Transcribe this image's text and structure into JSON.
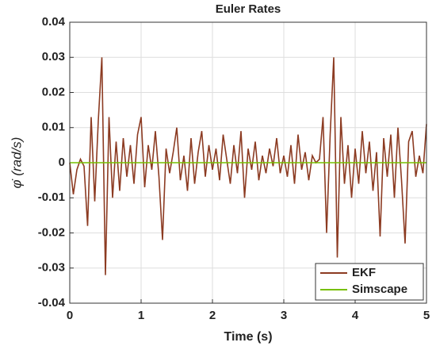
{
  "chart_data": {
    "type": "line",
    "title": "Euler Rates",
    "xlabel": "Time (s)",
    "ylabel": "φ̇ (rad/s)",
    "x": [
      0,
      0.05,
      0.1,
      0.15,
      0.2,
      0.25,
      0.3,
      0.35,
      0.4,
      0.45,
      0.5,
      0.55,
      0.6,
      0.65,
      0.7,
      0.75,
      0.8,
      0.85,
      0.9,
      0.95,
      1,
      1.05,
      1.1,
      1.15,
      1.2,
      1.25,
      1.3,
      1.35,
      1.4,
      1.45,
      1.5,
      1.55,
      1.6,
      1.65,
      1.7,
      1.75,
      1.8,
      1.85,
      1.9,
      1.95,
      2,
      2.05,
      2.1,
      2.15,
      2.2,
      2.25,
      2.3,
      2.35,
      2.4,
      2.45,
      2.5,
      2.55,
      2.6,
      2.65,
      2.7,
      2.75,
      2.8,
      2.85,
      2.9,
      2.95,
      3,
      3.05,
      3.1,
      3.15,
      3.2,
      3.25,
      3.3,
      3.35,
      3.4,
      3.45,
      3.5,
      3.55,
      3.6,
      3.65,
      3.7,
      3.75,
      3.8,
      3.85,
      3.9,
      3.95,
      4,
      4.05,
      4.1,
      4.15,
      4.2,
      4.25,
      4.3,
      4.35,
      4.4,
      4.45,
      4.5,
      4.55,
      4.6,
      4.65,
      4.7,
      4.75,
      4.8,
      4.85,
      4.9,
      4.95,
      5
    ],
    "series": [
      {
        "name": "EKF",
        "color": "#8c3b22",
        "values": [
          0,
          -0.009,
          -0.002,
          0.001,
          -0.001,
          -0.018,
          0.013,
          -0.011,
          0.012,
          0.03,
          -0.032,
          0.013,
          -0.01,
          0.006,
          -0.008,
          0.007,
          -0.004,
          0.005,
          -0.006,
          0.008,
          0.013,
          -0.007,
          0.005,
          -0.002,
          0.009,
          -0.004,
          -0.022,
          0.004,
          -0.003,
          0.003,
          0.01,
          -0.005,
          0.002,
          -0.008,
          0.007,
          -0.006,
          0.003,
          0.009,
          -0.004,
          0.005,
          -0.002,
          0.004,
          -0.005,
          0.008,
          0.001,
          -0.006,
          0.005,
          -0.003,
          0.009,
          -0.01,
          0.004,
          -0.002,
          0.006,
          -0.005,
          0.002,
          -0.003,
          0.004,
          -0.001,
          0.007,
          -0.003,
          0.002,
          -0.004,
          0.005,
          -0.006,
          0.008,
          -0.002,
          0.003,
          -0.005,
          0.002,
          0,
          0.001,
          0.013,
          -0.02,
          0.008,
          0.03,
          -0.027,
          0.013,
          -0.006,
          0.005,
          -0.01,
          0.004,
          -0.006,
          0.009,
          -0.003,
          0.006,
          -0.008,
          0.003,
          -0.021,
          0.007,
          -0.004,
          0.008,
          -0.01,
          0.01,
          -0.005,
          -0.023,
          0.006,
          0.009,
          -0.004,
          0.002,
          -0.003,
          0.011
        ]
      },
      {
        "name": "Simscape",
        "color": "#77c000",
        "values": [
          0,
          0,
          0,
          0,
          0,
          0,
          0,
          0,
          0,
          0,
          0,
          0,
          0,
          0,
          0,
          0,
          0,
          0,
          0,
          0,
          0,
          0,
          0,
          0,
          0,
          0,
          0,
          0,
          0,
          0,
          0,
          0,
          0,
          0,
          0,
          0,
          0,
          0,
          0,
          0,
          0,
          0,
          0,
          0,
          0,
          0,
          0,
          0,
          0,
          0,
          0,
          0,
          0,
          0,
          0,
          0,
          0,
          0,
          0,
          0,
          0,
          0,
          0,
          0,
          0,
          0,
          0,
          0,
          0,
          0,
          0,
          0,
          0,
          0,
          0,
          0,
          0,
          0,
          0,
          0,
          0,
          0,
          0,
          0,
          0,
          0,
          0,
          0,
          0,
          0,
          0,
          0,
          0,
          0,
          0,
          0,
          0,
          0,
          0,
          0,
          0
        ]
      }
    ],
    "xlim": [
      0,
      5
    ],
    "xticks": [
      0,
      1,
      2,
      3,
      4,
      5
    ],
    "ylim": [
      -0.04,
      0.04
    ],
    "yticks": [
      -0.04,
      -0.03,
      -0.02,
      -0.01,
      0,
      0.01,
      0.02,
      0.03,
      0.04
    ],
    "grid": true,
    "legend": "lower right"
  }
}
